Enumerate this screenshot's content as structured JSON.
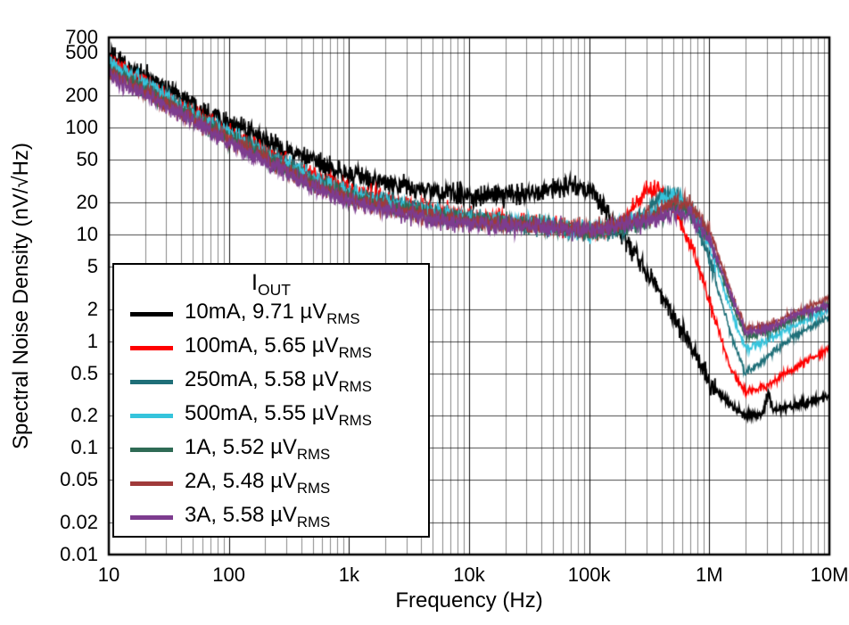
{
  "chart_data": {
    "type": "line",
    "title": "",
    "xlabel": "Frequency (Hz)",
    "ylabel": "Spectral Noise Density (nV/√Hz)",
    "xscale": "log",
    "yscale": "log",
    "xlim": [
      10,
      10000000
    ],
    "ylim": [
      0.01,
      700
    ],
    "grid": true,
    "x_ticks": [
      10,
      100,
      1000,
      10000,
      100000,
      1000000,
      10000000
    ],
    "x_tick_labels": [
      "10",
      "100",
      "1k",
      "10k",
      "100k",
      "1M",
      "10M"
    ],
    "y_ticks": [
      700,
      500,
      200,
      100,
      50,
      20,
      10,
      5,
      2,
      1,
      0.5,
      0.2,
      0.1,
      0.05,
      0.02,
      0.01
    ],
    "y_tick_labels": [
      "700",
      "500",
      "200",
      "100",
      "50",
      "20",
      "10",
      "5",
      "2",
      "1",
      "0.5",
      "0.2",
      "0.1",
      "0.05",
      "0.02",
      "0.01"
    ],
    "legend": {
      "title_main": "I",
      "title_sub": "OUT",
      "position": "lower-left"
    },
    "series": [
      {
        "label": "10mA, 9.71 µV",
        "label_sub": "RMS",
        "color": "#000000",
        "points": [
          [
            10,
            480
          ],
          [
            20,
            300
          ],
          [
            50,
            170
          ],
          [
            100,
            110
          ],
          [
            200,
            75
          ],
          [
            500,
            48
          ],
          [
            1000,
            36
          ],
          [
            2000,
            30
          ],
          [
            5000,
            25
          ],
          [
            10000,
            23
          ],
          [
            20000,
            23
          ],
          [
            50000,
            27
          ],
          [
            80000,
            28
          ],
          [
            100000,
            26
          ],
          [
            130000,
            18
          ],
          [
            200000,
            9
          ],
          [
            300000,
            4.5
          ],
          [
            500000,
            1.8
          ],
          [
            700000,
            0.9
          ],
          [
            1000000,
            0.42
          ],
          [
            1500000,
            0.25
          ],
          [
            2000000,
            0.2
          ],
          [
            2800000,
            0.21
          ],
          [
            3100000,
            0.33
          ],
          [
            3400000,
            0.22
          ],
          [
            5000000,
            0.25
          ],
          [
            10000000,
            0.3
          ]
        ]
      },
      {
        "label": "100mA, 5.65 µV",
        "label_sub": "RMS",
        "color": "#FF0000",
        "points": [
          [
            10,
            420
          ],
          [
            20,
            260
          ],
          [
            50,
            140
          ],
          [
            100,
            90
          ],
          [
            200,
            60
          ],
          [
            500,
            35
          ],
          [
            1000,
            26
          ],
          [
            2000,
            21
          ],
          [
            5000,
            17
          ],
          [
            10000,
            15
          ],
          [
            20000,
            14
          ],
          [
            50000,
            12
          ],
          [
            100000,
            10.5
          ],
          [
            150000,
            11
          ],
          [
            200000,
            14
          ],
          [
            300000,
            27
          ],
          [
            400000,
            24
          ],
          [
            500000,
            18
          ],
          [
            700000,
            8
          ],
          [
            1000000,
            2.5
          ],
          [
            1500000,
            0.55
          ],
          [
            2000000,
            0.33
          ],
          [
            3000000,
            0.38
          ],
          [
            5000000,
            0.55
          ],
          [
            10000000,
            0.85
          ]
        ]
      },
      {
        "label": "250mA, 5.58 µV",
        "label_sub": "RMS",
        "color": "#1F6F78",
        "points": [
          [
            10,
            380
          ],
          [
            50,
            130
          ],
          [
            100,
            85
          ],
          [
            500,
            33
          ],
          [
            1000,
            24
          ],
          [
            5000,
            16
          ],
          [
            10000,
            14
          ],
          [
            50000,
            12
          ],
          [
            100000,
            10
          ],
          [
            200000,
            11
          ],
          [
            300000,
            16
          ],
          [
            400000,
            22
          ],
          [
            500000,
            24
          ],
          [
            600000,
            20
          ],
          [
            800000,
            12
          ],
          [
            1000000,
            6
          ],
          [
            1500000,
            1.2
          ],
          [
            2000000,
            0.5
          ],
          [
            3000000,
            0.7
          ],
          [
            5000000,
            1.1
          ],
          [
            10000000,
            1.7
          ]
        ]
      },
      {
        "label": "500mA, 5.55 µV",
        "label_sub": "RMS",
        "color": "#35C4DC",
        "points": [
          [
            10,
            420
          ],
          [
            50,
            135
          ],
          [
            100,
            88
          ],
          [
            500,
            33
          ],
          [
            1000,
            24
          ],
          [
            5000,
            16
          ],
          [
            10000,
            14
          ],
          [
            50000,
            12
          ],
          [
            100000,
            10.5
          ],
          [
            300000,
            14
          ],
          [
            400000,
            20
          ],
          [
            500000,
            23
          ],
          [
            600000,
            21
          ],
          [
            800000,
            14
          ],
          [
            1000000,
            8
          ],
          [
            1500000,
            2
          ],
          [
            2000000,
            0.85
          ],
          [
            3000000,
            1.0
          ],
          [
            5000000,
            1.4
          ],
          [
            10000000,
            2.0
          ]
        ]
      },
      {
        "label": "1A, 5.52 µV",
        "label_sub": "RMS",
        "color": "#2F6B55",
        "points": [
          [
            10,
            350
          ],
          [
            50,
            125
          ],
          [
            100,
            80
          ],
          [
            500,
            30
          ],
          [
            1000,
            22
          ],
          [
            5000,
            15
          ],
          [
            10000,
            13.5
          ],
          [
            50000,
            12
          ],
          [
            100000,
            10.5
          ],
          [
            300000,
            13
          ],
          [
            500000,
            18
          ],
          [
            700000,
            16
          ],
          [
            1000000,
            9
          ],
          [
            1500000,
            2.5
          ],
          [
            2000000,
            1.1
          ],
          [
            3000000,
            1.2
          ],
          [
            5000000,
            1.6
          ],
          [
            10000000,
            2.2
          ]
        ]
      },
      {
        "label": "2A, 5.48 µV",
        "label_sub": "RMS",
        "color": "#A03A3A",
        "points": [
          [
            10,
            330
          ],
          [
            50,
            120
          ],
          [
            100,
            78
          ],
          [
            500,
            29
          ],
          [
            1000,
            21
          ],
          [
            5000,
            14.5
          ],
          [
            10000,
            13
          ],
          [
            50000,
            12
          ],
          [
            100000,
            11
          ],
          [
            300000,
            14
          ],
          [
            500000,
            20
          ],
          [
            700000,
            19
          ],
          [
            1000000,
            11
          ],
          [
            1500000,
            3
          ],
          [
            2000000,
            1.3
          ],
          [
            3000000,
            1.4
          ],
          [
            5000000,
            1.8
          ],
          [
            10000000,
            2.5
          ]
        ]
      },
      {
        "label": "3A, 5.58 µV",
        "label_sub": "RMS",
        "color": "#7D3C8F",
        "points": [
          [
            10,
            300
          ],
          [
            50,
            115
          ],
          [
            100,
            72
          ],
          [
            500,
            28
          ],
          [
            1000,
            20
          ],
          [
            5000,
            13.5
          ],
          [
            10000,
            12.5
          ],
          [
            50000,
            11.5
          ],
          [
            100000,
            11
          ],
          [
            300000,
            13
          ],
          [
            500000,
            16
          ],
          [
            700000,
            15
          ],
          [
            1000000,
            9
          ],
          [
            1500000,
            2.8
          ],
          [
            2000000,
            1.2
          ],
          [
            3000000,
            1.3
          ],
          [
            5000000,
            1.7
          ],
          [
            10000000,
            2.2
          ]
        ]
      }
    ]
  }
}
